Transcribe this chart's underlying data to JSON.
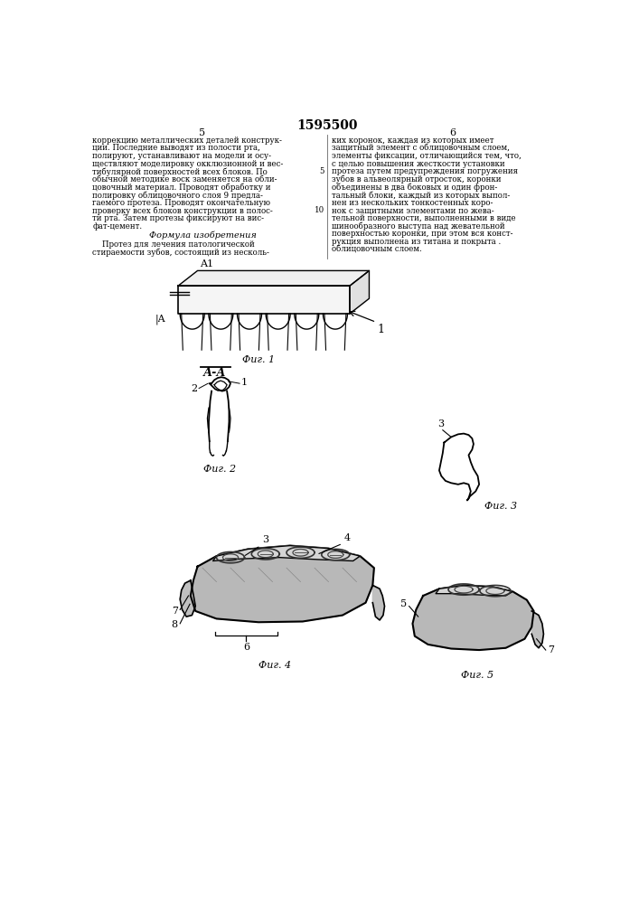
{
  "patent_number": "1595500",
  "page_numbers": [
    "5",
    "6"
  ],
  "background_color": "#ffffff",
  "text_color": "#111111",
  "left_col_lines": [
    "коррекцию металлических деталей конструк-",
    "ции. Последние выводят из полости рта,",
    "полируют, устанавливают на модели и осу-",
    "ществляют моделировку окклюзионной и вес-",
    "тибулярной поверхностей всех блоков. По",
    "обычной методике воск заменяется на обли-",
    "цовочный материал. Проводят обработку и",
    "полировку облицовочного слоя 9 предла-",
    "гаемого протеза. Проводят окончательную",
    "проверку всех блоков конструкции в полос-",
    "ти рта. Затем протезы фиксируют на вис-",
    "фат-цемент."
  ],
  "formula_header": "Формула изобретения",
  "formula_left": [
    "    Протез для лечения патологической",
    "стираемости зубов, состоящий из несколь-"
  ],
  "right_col_lines": [
    "ких коронок, каждая из которых имеет",
    "защитный элемент с облицовочным слоем,",
    "элементы фиксации, отличающийся тем, что,",
    "с целью повышения жесткости установки",
    "протеза путем предупреждения погружения",
    "зубов в альвеолярный отросток, коронки",
    "объединены в два боковых и один фрон-",
    "тальный блоки, каждый из которых выпол-",
    "нен из нескольких тонкостенных коро-",
    "нок с защитными элементами по жева-",
    "тельной поверхности, выполненными в виде",
    "шинообразного выступа над жевательной",
    "поверхностью коронки, при этом вся конст-",
    "рукция выполнена из титана и покрыта .",
    "облицовочным слоем."
  ],
  "line_num_5_row": 4,
  "line_num_10_row": 9,
  "fig_captions": [
    "Фиг. 1",
    "Фиг. 2",
    "Фиг. 3",
    "Фиг. 4",
    "Фиг. 5"
  ]
}
